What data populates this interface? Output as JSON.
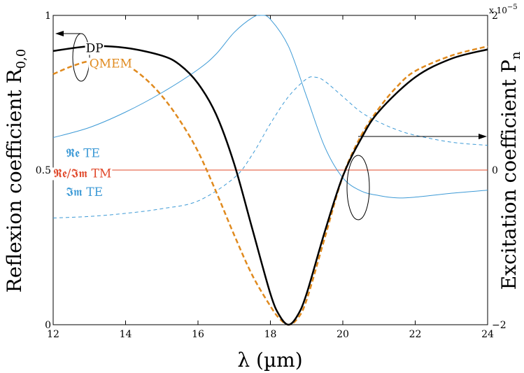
{
  "chart_data": {
    "type": "line",
    "xlabel": "λ (µm)",
    "ylabel_left": "Reflexion coefficient R",
    "ylabel_left_sub": "0,0",
    "ylabel_right": "Excitation coefficient P",
    "ylabel_right_sub": "n",
    "xlim": [
      12,
      24
    ],
    "ylim_left": [
      0,
      1
    ],
    "ylim_right": [
      -2,
      2
    ],
    "right_axis_multiplier": "x 10",
    "right_axis_multiplier_exp": "−5",
    "x_ticks": [
      "12",
      "14",
      "16",
      "18",
      "20",
      "22",
      "24"
    ],
    "y_left_ticks": [
      "0",
      "0.5",
      "1"
    ],
    "y_right_ticks": [
      "−2",
      "0",
      "2"
    ],
    "series": [
      {
        "name": "DP",
        "axis": "left",
        "color": "#000000",
        "style": "solid",
        "x": [
          12,
          13,
          14,
          15,
          15.5,
          16,
          16.5,
          17,
          17.5,
          18,
          18.25,
          18.5,
          18.75,
          19,
          19.5,
          20,
          20.5,
          21,
          22,
          23,
          24
        ],
        "y": [
          0.885,
          0.9,
          0.895,
          0.87,
          0.84,
          0.78,
          0.68,
          0.52,
          0.31,
          0.1,
          0.03,
          0.0,
          0.03,
          0.1,
          0.3,
          0.48,
          0.6,
          0.69,
          0.8,
          0.86,
          0.89
        ]
      },
      {
        "name": "QMEM",
        "axis": "left",
        "color": "#e08a1e",
        "style": "dashed",
        "x": [
          12,
          12.5,
          13,
          13.5,
          14,
          14.5,
          15,
          15.5,
          16,
          16.5,
          17,
          17.5,
          18,
          18.25,
          18.5,
          18.75,
          19,
          19.5,
          20,
          20.5,
          21,
          21.5,
          22,
          23,
          24
        ],
        "y": [
          0.81,
          0.835,
          0.852,
          0.852,
          0.84,
          0.8,
          0.74,
          0.66,
          0.56,
          0.43,
          0.29,
          0.16,
          0.06,
          0.02,
          0.0,
          0.02,
          0.08,
          0.28,
          0.48,
          0.61,
          0.7,
          0.77,
          0.82,
          0.87,
          0.9
        ]
      },
      {
        "name": "Re TE",
        "axis": "right",
        "color": "#3d9ad6",
        "style": "solid",
        "x": [
          12,
          13,
          14,
          15,
          16,
          16.5,
          17,
          17.5,
          17.75,
          18,
          18.5,
          19,
          19.5,
          20,
          20.5,
          21,
          21.5,
          22,
          23,
          24
        ],
        "y": [
          0.42,
          0.55,
          0.75,
          1.0,
          1.3,
          1.5,
          1.78,
          1.97,
          2.0,
          1.95,
          1.6,
          0.95,
          0.3,
          -0.1,
          -0.27,
          -0.33,
          -0.36,
          -0.35,
          -0.3,
          -0.26
        ]
      },
      {
        "name": "Im TE",
        "axis": "right",
        "color": "#3d9ad6",
        "style": "dashed",
        "x": [
          12,
          13,
          14,
          15,
          16,
          17,
          17.5,
          18,
          18.5,
          19,
          19.25,
          19.5,
          20,
          20.5,
          21,
          21.5,
          22,
          23,
          24
        ],
        "y": [
          -0.62,
          -0.6,
          -0.56,
          -0.5,
          -0.4,
          -0.1,
          0.2,
          0.6,
          0.95,
          1.18,
          1.2,
          1.15,
          0.95,
          0.75,
          0.62,
          0.52,
          0.45,
          0.36,
          0.32
        ]
      },
      {
        "name": "Re/Im TM",
        "axis": "right",
        "color": "#e0482a",
        "style": "solid",
        "x": [
          12,
          24
        ],
        "y": [
          0,
          0
        ]
      }
    ],
    "annotations": [
      {
        "text": "DP",
        "color": "#000000",
        "x": 12.9,
        "y": 0.895
      },
      {
        "text": "QMEM",
        "color": "#e08a1e",
        "x": 13.0,
        "y": 0.845
      },
      {
        "text": "𝕽𝖊 TE",
        "color": "#3d9ad6",
        "x": 12.35,
        "y": 0.555
      },
      {
        "text": "𝕽𝖊/𝕴𝖒 TM",
        "color": "#e0482a",
        "x": 12.0,
        "y": 0.49
      },
      {
        "text": "𝕴𝖒 TE",
        "color": "#3d9ad6",
        "x": 12.35,
        "y": 0.43
      }
    ]
  }
}
